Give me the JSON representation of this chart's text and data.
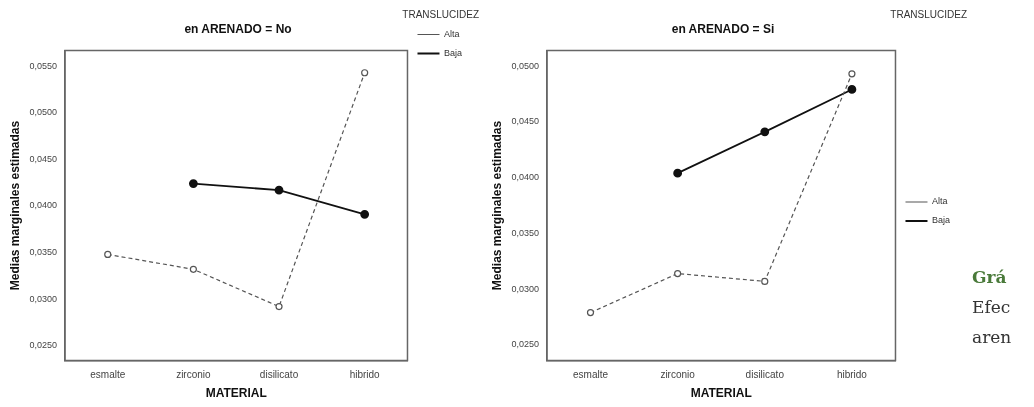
{
  "chart_data": [
    {
      "type": "line",
      "title": "en ARENADO = No",
      "xlabel": "MATERIAL",
      "ylabel": "Medias marginales estimadas",
      "legend_title": "TRANSLUCIDEZ",
      "legend": "right",
      "marker": "circle",
      "grid": false,
      "categories": [
        "esmalte",
        "zirconio",
        "disilicato",
        "hibrido"
      ],
      "ylim": [
        0.0234,
        0.0567
      ],
      "yticks": [
        {
          "value": 0.025,
          "label": "0,0250"
        },
        {
          "value": 0.03,
          "label": "0,0300"
        },
        {
          "value": 0.035,
          "label": "0,0350"
        },
        {
          "value": 0.04,
          "label": "0,0400"
        },
        {
          "value": 0.045,
          "label": "0,0450"
        },
        {
          "value": 0.05,
          "label": "0,0500"
        },
        {
          "value": 0.055,
          "label": "0,0550"
        }
      ],
      "series": [
        {
          "name": "Alta",
          "color": "#555555",
          "line_style": "dashed",
          "values": [
            0.0348,
            0.0332,
            0.0292,
            0.0543
          ]
        },
        {
          "name": "Baja",
          "color": "#111111",
          "line_style": "solid",
          "values": [
            null,
            0.0424,
            0.0417,
            0.0391
          ]
        }
      ]
    },
    {
      "type": "line",
      "title": "en ARENADO = Si",
      "xlabel": "MATERIAL",
      "ylabel": "Medias marginales estimadas",
      "legend_title": "TRANSLUCIDEZ",
      "legend": "right",
      "marker": "circle",
      "grid": false,
      "categories": [
        "esmalte",
        "zirconio",
        "disilicato",
        "hibrido"
      ],
      "ylim": [
        0.0236,
        0.0514
      ],
      "yticks": [
        {
          "value": 0.025,
          "label": "0,0250"
        },
        {
          "value": 0.03,
          "label": "0,0300"
        },
        {
          "value": 0.035,
          "label": "0,0350"
        },
        {
          "value": 0.04,
          "label": "0,0400"
        },
        {
          "value": 0.045,
          "label": "0,0450"
        },
        {
          "value": 0.05,
          "label": "0,0500"
        }
      ],
      "series": [
        {
          "name": "Alta",
          "color": "#555555",
          "line_style": "dashed",
          "values": [
            0.0279,
            0.0314,
            0.0307,
            0.0493
          ]
        },
        {
          "name": "Baja",
          "color": "#111111",
          "line_style": "solid",
          "values": [
            null,
            0.0404,
            0.0441,
            0.0479
          ]
        }
      ],
      "annotations": [
        "Grá",
        "Efec",
        "aren"
      ]
    }
  ]
}
